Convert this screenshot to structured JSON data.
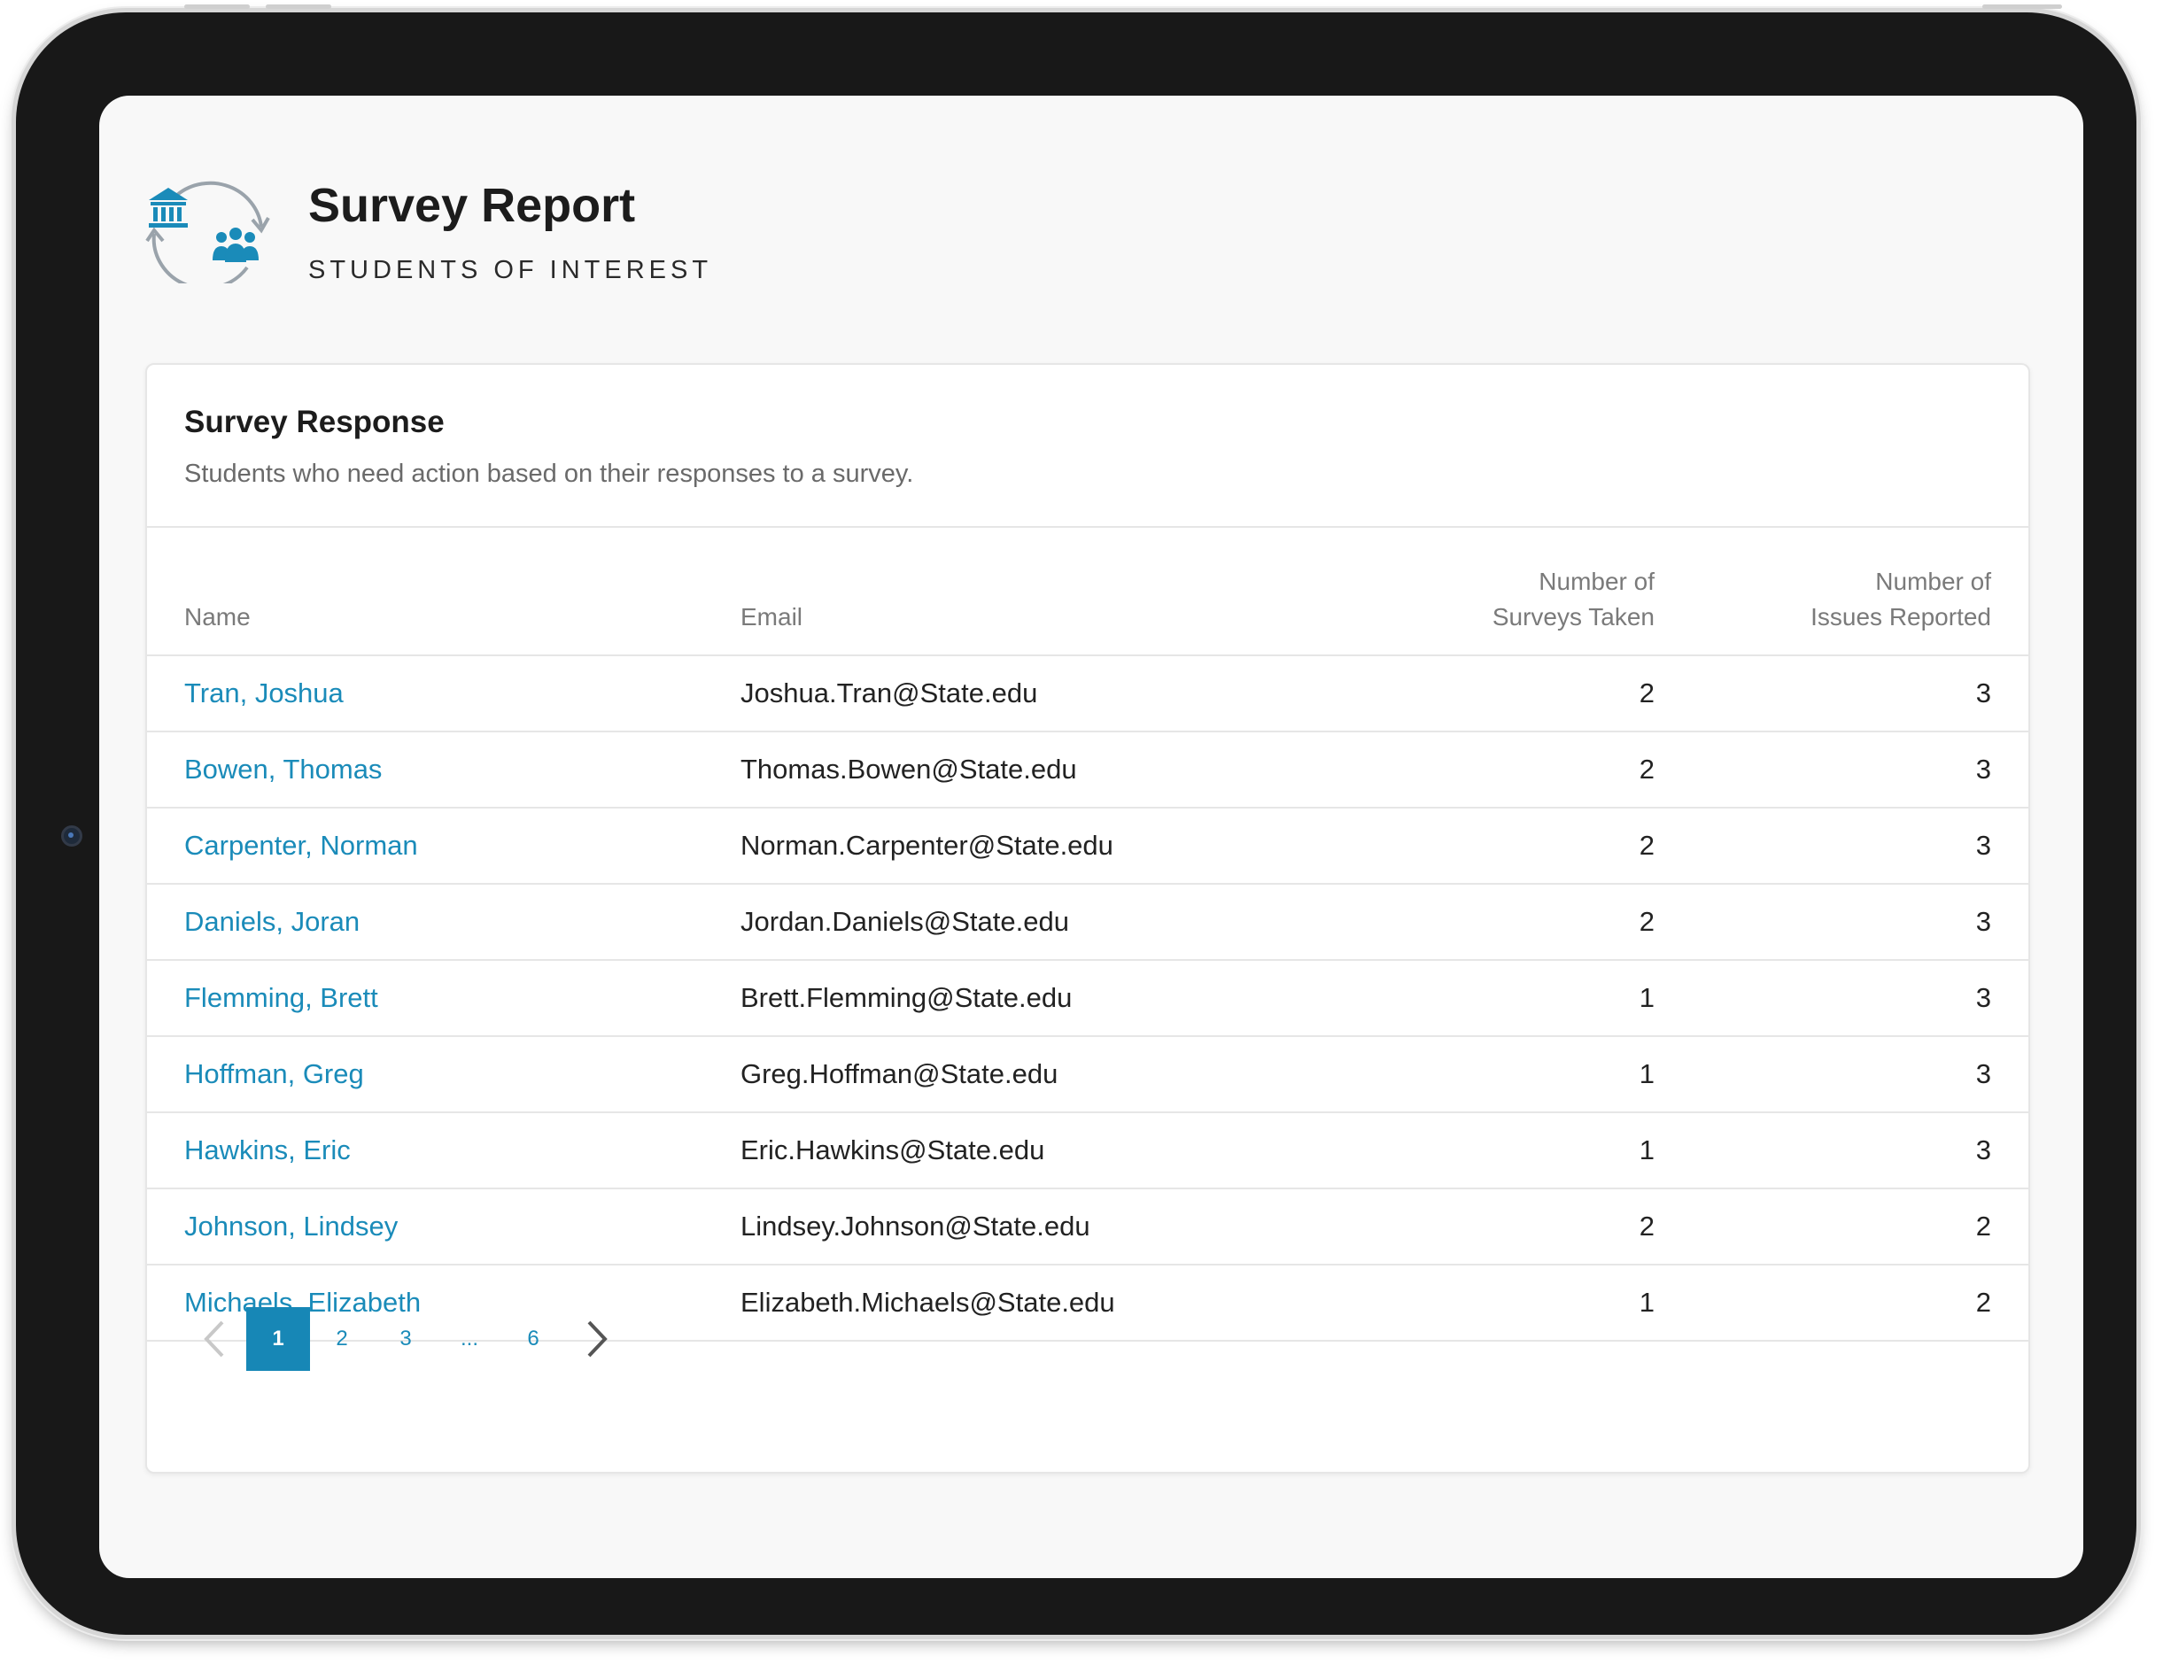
{
  "header": {
    "title": "Survey Report",
    "subtitle": "STUDENTS OF INTEREST",
    "logo_icon": "institution-students-cycle-icon"
  },
  "card": {
    "title": "Survey Response",
    "description": "Students who need action based on their responses to a survey."
  },
  "table": {
    "columns": {
      "name": "Name",
      "email": "Email",
      "surveys_line1": "Number of",
      "surveys_line2": "Surveys Taken",
      "issues_line1": "Number of",
      "issues_line2": "Issues Reported"
    },
    "rows": [
      {
        "name": "Tran, Joshua",
        "email": "Joshua.Tran@State.edu",
        "surveys": "2",
        "issues": "3"
      },
      {
        "name": "Bowen, Thomas",
        "email": "Thomas.Bowen@State.edu",
        "surveys": "2",
        "issues": "3"
      },
      {
        "name": "Carpenter, Norman",
        "email": "Norman.Carpenter@State.edu",
        "surveys": "2",
        "issues": "3"
      },
      {
        "name": "Daniels, Joran",
        "email": "Jordan.Daniels@State.edu",
        "surveys": "2",
        "issues": "3"
      },
      {
        "name": "Flemming, Brett",
        "email": "Brett.Flemming@State.edu",
        "surveys": "1",
        "issues": "3"
      },
      {
        "name": "Hoffman, Greg",
        "email": "Greg.Hoffman@State.edu",
        "surveys": "1",
        "issues": "3"
      },
      {
        "name": "Hawkins, Eric",
        "email": "Eric.Hawkins@State.edu",
        "surveys": "1",
        "issues": "3"
      },
      {
        "name": "Johnson, Lindsey",
        "email": "Lindsey.Johnson@State.edu",
        "surveys": "2",
        "issues": "2"
      },
      {
        "name": "Michaels, Elizabeth",
        "email": "Elizabeth.Michaels@State.edu",
        "surveys": "1",
        "issues": "2"
      }
    ]
  },
  "pagination": {
    "pages": [
      "1",
      "2",
      "3",
      "...",
      "6"
    ],
    "current": "1",
    "prev_icon": "chevron-left-icon",
    "next_icon": "chevron-right-icon"
  },
  "colors": {
    "accent": "#1a8bb9",
    "active_page": "#1787b6",
    "frame": "#181818",
    "screen_bg": "#f8f8f8"
  }
}
